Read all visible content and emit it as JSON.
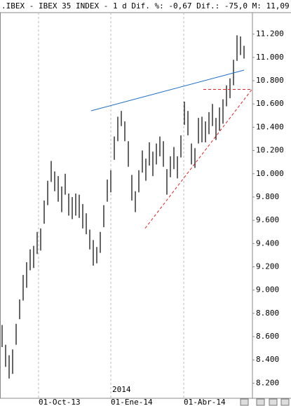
{
  "chart_data": {
    "type": "range_bar",
    "title": ".IBEX - IBEX 35 INDEX -  1 d Dif. %: -0,67 Dif.: -75,0 M: 11,09",
    "annotation": "2014",
    "color": "#000000",
    "high": [
      8700,
      8530,
      8440,
      8490,
      8710,
      8920,
      9130,
      9240,
      9350,
      9380,
      9500,
      9530,
      9770,
      9940,
      10110,
      10020,
      9980,
      9890,
      10000,
      9830,
      9800,
      9830,
      9820,
      9740,
      9660,
      9520,
      9430,
      9370,
      9500,
      9730,
      9950,
      10030,
      10320,
      10490,
      10540,
      10450,
      10280,
      9990,
      9850,
      10030,
      10200,
      10130,
      10270,
      10190,
      10260,
      10320,
      10280,
      10040,
      10150,
      10230,
      10150,
      10330,
      10620,
      10540,
      10260,
      10220,
      10480,
      10490,
      10450,
      10530,
      10600,
      10480,
      10570,
      10640,
      10760,
      10820,
      10980,
      11190,
      11180,
      11100
    ],
    "low": [
      8510,
      8340,
      8240,
      8280,
      8530,
      8750,
      8910,
      9020,
      9170,
      9190,
      9310,
      9340,
      9570,
      9730,
      9930,
      9850,
      9760,
      9670,
      9820,
      9640,
      9610,
      9640,
      9620,
      9530,
      9480,
      9350,
      9210,
      9230,
      9320,
      9540,
      9760,
      9840,
      10120,
      10280,
      10410,
      10280,
      10060,
      9770,
      9670,
      9840,
      10010,
      9940,
      10070,
      9980,
      10080,
      10150,
      10060,
      9820,
      9970,
      10040,
      9960,
      10140,
      10420,
      10330,
      10080,
      10050,
      10260,
      10270,
      10270,
      10340,
      10410,
      10290,
      10370,
      10430,
      10580,
      10650,
      10760,
      10970,
      11020,
      10990
    ],
    "xlim": [
      -0.6,
      71.4
    ],
    "xticks": [
      {
        "value": 10.4,
        "label": "01-Oct-13"
      },
      {
        "value": 31,
        "label": "01-Ene-14"
      },
      {
        "value": 51.8,
        "label": "01-Abr-14"
      }
    ],
    "ylim": [
      8070,
      11385
    ],
    "yticks": [
      {
        "value": 8200,
        "label": "8.200"
      },
      {
        "value": 8400,
        "label": "8.400"
      },
      {
        "value": 8600,
        "label": "8.600"
      },
      {
        "value": 8800,
        "label": "8.800"
      },
      {
        "value": 9000,
        "label": "9.000"
      },
      {
        "value": 9200,
        "label": "9.200"
      },
      {
        "value": 9400,
        "label": "9.400"
      },
      {
        "value": 9600,
        "label": "9.600"
      },
      {
        "value": 9800,
        "label": "9.800"
      },
      {
        "value": 10000,
        "label": "10.000"
      },
      {
        "value": 10200,
        "label": "10.200"
      },
      {
        "value": 10400,
        "label": "10.400"
      },
      {
        "value": 10600,
        "label": "10.600"
      },
      {
        "value": 10800,
        "label": "10.800"
      },
      {
        "value": 11000,
        "label": "11.000"
      },
      {
        "value": 11200,
        "label": "11.200"
      }
    ],
    "trendlines": [
      {
        "color": "#1f6fc8",
        "dashed": false,
        "points": [
          [
            25.4,
            10541
          ],
          [
            69,
            10891
          ]
        ]
      },
      {
        "color": "#e02020",
        "dashed": true,
        "points": [
          [
            40.8,
            9531
          ],
          [
            71.4,
            10731
          ]
        ]
      },
      {
        "color": "#e02020",
        "dashed": true,
        "points": [
          [
            57.4,
            10725
          ],
          [
            71.4,
            10725
          ]
        ]
      }
    ]
  }
}
